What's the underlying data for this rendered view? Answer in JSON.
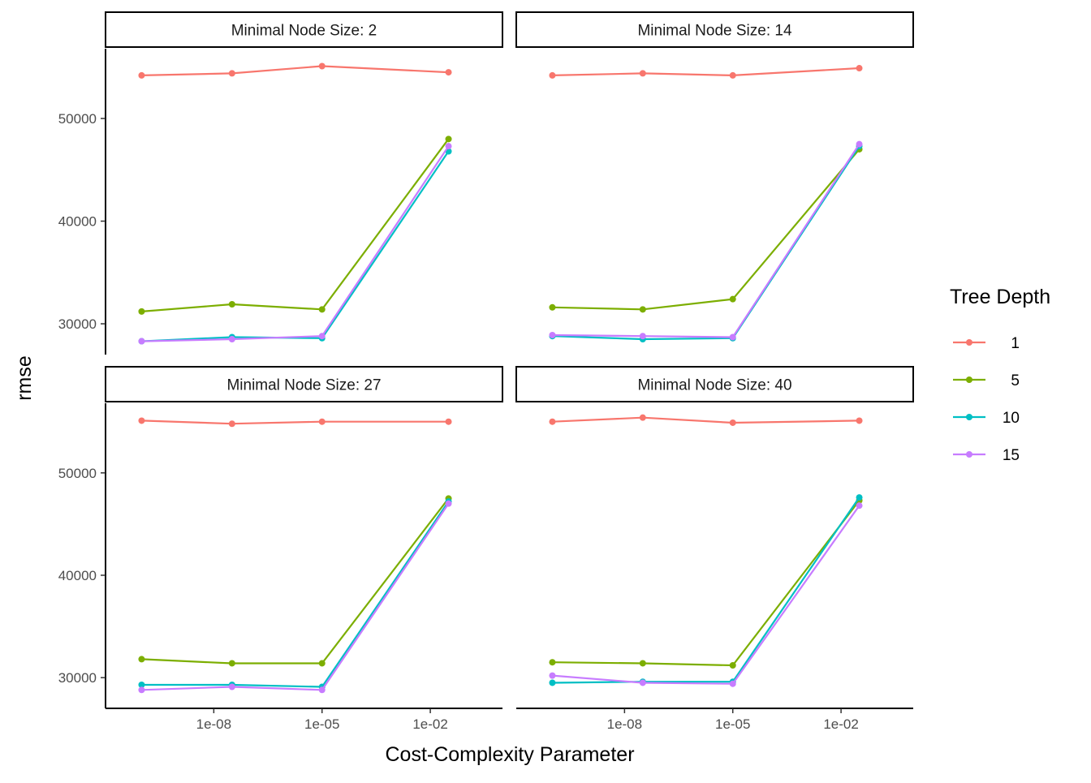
{
  "chart_data": {
    "type": "line",
    "xlabel": "Cost-Complexity Parameter",
    "ylabel": "rmse",
    "x_scale": "log10",
    "x_ticks": [
      1e-08,
      1e-05,
      0.01
    ],
    "x_tick_labels": [
      "1e-08",
      "1e-05",
      "1e-02"
    ],
    "xlim": [
      1e-11,
      1
    ],
    "y_ticks": [
      30000,
      40000,
      50000
    ],
    "y_tick_labels": [
      "30000",
      "40000",
      "50000"
    ],
    "ylim": [
      27000,
      56800
    ],
    "grid": false,
    "legend": {
      "title": "Tree Depth",
      "position": "right",
      "entries": [
        {
          "label": "1",
          "color": "#F8766D"
        },
        {
          "label": "5",
          "color": "#7CAE00"
        },
        {
          "label": "10",
          "color": "#00BFC4"
        },
        {
          "label": "15",
          "color": "#C77CFF"
        }
      ]
    },
    "x": [
      1e-10,
      3.2e-08,
      1e-05,
      0.032
    ],
    "panels": [
      {
        "strip": "Minimal Node Size: 2",
        "series": [
          {
            "name": "1",
            "color": "#F8766D",
            "values": [
              54200,
              54400,
              55100,
              54500
            ]
          },
          {
            "name": "5",
            "color": "#7CAE00",
            "values": [
              31200,
              31900,
              31400,
              48000
            ]
          },
          {
            "name": "10",
            "color": "#00BFC4",
            "values": [
              28300,
              28700,
              28600,
              46800
            ]
          },
          {
            "name": "15",
            "color": "#C77CFF",
            "values": [
              28300,
              28500,
              28800,
              47300
            ]
          }
        ]
      },
      {
        "strip": "Minimal Node Size: 14",
        "series": [
          {
            "name": "1",
            "color": "#F8766D",
            "values": [
              54200,
              54400,
              54200,
              54900
            ]
          },
          {
            "name": "5",
            "color": "#7CAE00",
            "values": [
              31600,
              31400,
              32400,
              47000
            ]
          },
          {
            "name": "10",
            "color": "#00BFC4",
            "values": [
              28800,
              28500,
              28600,
              47300
            ]
          },
          {
            "name": "15",
            "color": "#C77CFF",
            "values": [
              28900,
              28800,
              28700,
              47500
            ]
          }
        ]
      },
      {
        "strip": "Minimal Node Size: 27",
        "series": [
          {
            "name": "1",
            "color": "#F8766D",
            "values": [
              55100,
              54800,
              55000,
              55000
            ]
          },
          {
            "name": "5",
            "color": "#7CAE00",
            "values": [
              31800,
              31400,
              31400,
              47500
            ]
          },
          {
            "name": "10",
            "color": "#00BFC4",
            "values": [
              29300,
              29300,
              29100,
              47200
            ]
          },
          {
            "name": "15",
            "color": "#C77CFF",
            "values": [
              28800,
              29100,
              28800,
              47000
            ]
          }
        ]
      },
      {
        "strip": "Minimal Node Size: 40",
        "series": [
          {
            "name": "1",
            "color": "#F8766D",
            "values": [
              55000,
              55400,
              54900,
              55100
            ]
          },
          {
            "name": "5",
            "color": "#7CAE00",
            "values": [
              31500,
              31400,
              31200,
              47300
            ]
          },
          {
            "name": "10",
            "color": "#00BFC4",
            "values": [
              29500,
              29600,
              29600,
              47600
            ]
          },
          {
            "name": "15",
            "color": "#C77CFF",
            "values": [
              30200,
              29500,
              29400,
              46800
            ]
          }
        ]
      }
    ]
  }
}
